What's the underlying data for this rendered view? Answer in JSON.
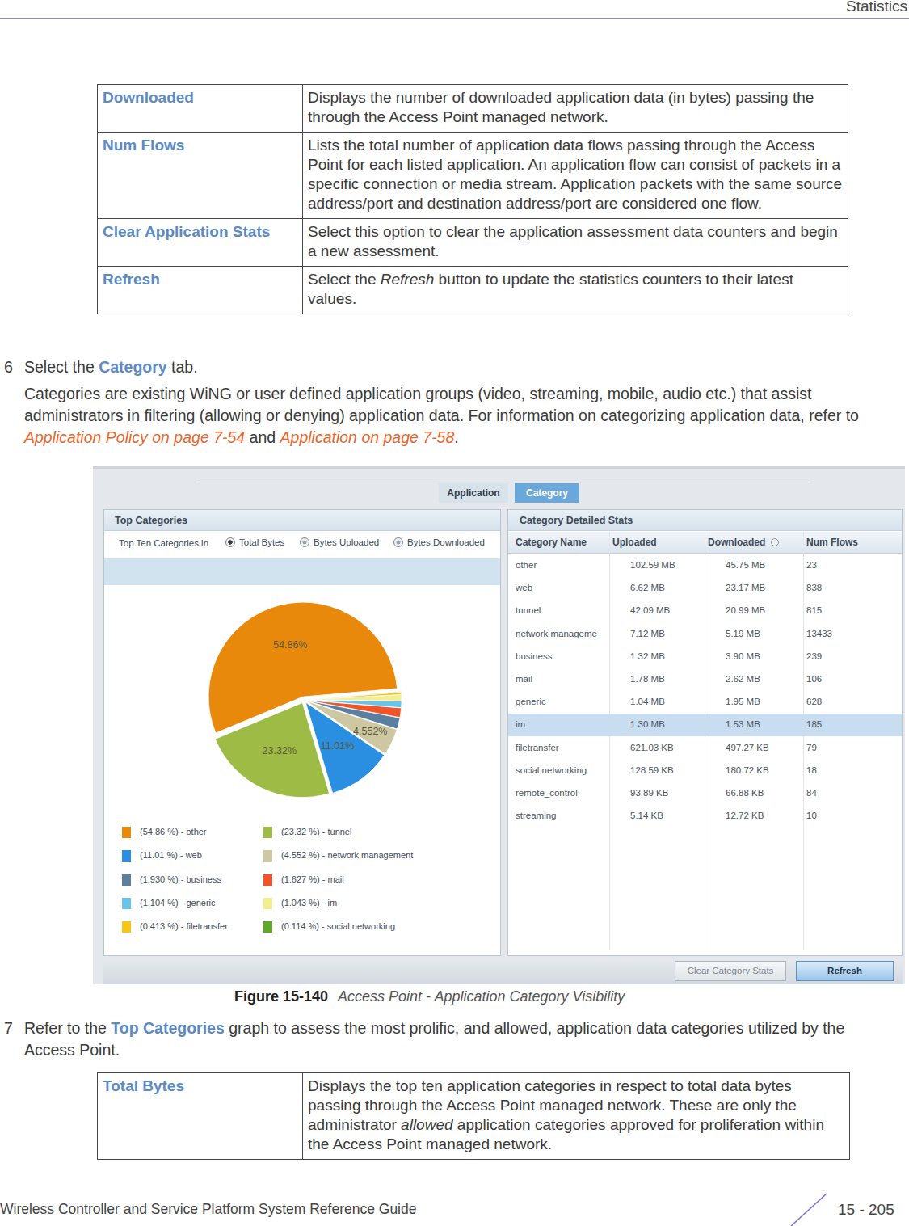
{
  "header": {
    "title": "Statistics"
  },
  "top_table": {
    "rows": [
      {
        "term": "Downloaded",
        "description": [
          {
            "text": "Displays the number of downloaded application data (in bytes) passing the through the Access Point managed network."
          }
        ]
      },
      {
        "term": "Num Flows",
        "description": [
          {
            "text": "Lists the total number of application data flows passing through the Access Point for each listed application. An application flow can consist of packets in a specific connection or media stream. Application packets with the same source address/port and destination address/port are considered one flow."
          }
        ]
      },
      {
        "term": "Clear Application Stats",
        "description": [
          {
            "text": "Select this option to clear the application assessment data counters and begin a new assessment."
          }
        ]
      },
      {
        "term": "Refresh",
        "description": [
          {
            "text": "Select the "
          },
          {
            "text": "Refresh",
            "style": "italic"
          },
          {
            "text": " button to update the statistics counters to their latest values."
          }
        ]
      }
    ]
  },
  "steps": [
    {
      "number": "6",
      "runs": [
        {
          "text": "Select the "
        },
        {
          "text": "Category",
          "style": "bold"
        },
        {
          "text": " tab."
        }
      ],
      "body": [
        {
          "text": "Categories are existing WiNG or user defined application groups (video, streaming, mobile, audio etc.) that assist administrators in filtering (allowing or denying) application data. For information on categorizing application data, refer to "
        },
        {
          "text": "Application Policy on page 7-54",
          "style": "link"
        },
        {
          "text": " and "
        },
        {
          "text": "Application on page 7-58",
          "style": "link"
        },
        {
          "text": "."
        }
      ]
    },
    {
      "number": "7",
      "runs": [
        {
          "text": "Refer to the "
        },
        {
          "text": "Top Categories",
          "style": "bold"
        },
        {
          "text": " graph to assess the most prolific, and allowed, application data categories utilized by the Access Point."
        }
      ]
    }
  ],
  "screenshot": {
    "tabs": [
      {
        "label": "Application"
      },
      {
        "label": "Category",
        "active": true
      }
    ],
    "left_panel": {
      "title": "Top Categories",
      "radio_prompt": "Top Ten Categories in",
      "radio_options": [
        {
          "label": "Total Bytes",
          "checked": true
        },
        {
          "label": "Bytes Uploaded"
        },
        {
          "label": "Bytes Downloaded"
        }
      ]
    },
    "right_panel": {
      "title": "Category Detailed Stats",
      "columns": [
        {
          "label": "Category Name"
        },
        {
          "label": "Uploaded"
        },
        {
          "label": "Downloaded",
          "sorted": true
        },
        {
          "label": "Num Flows"
        }
      ],
      "rows": [
        {
          "cells": [
            "other",
            "102.59 MB",
            "45.75 MB",
            "23"
          ]
        },
        {
          "cells": [
            "web",
            "6.62 MB",
            "23.17 MB",
            "838"
          ]
        },
        {
          "cells": [
            "tunnel",
            "42.09 MB",
            "20.99 MB",
            "815"
          ]
        },
        {
          "cells": [
            "network manageme",
            "7.12 MB",
            "5.19 MB",
            "13433"
          ]
        },
        {
          "cells": [
            "business",
            "1.32 MB",
            "3.90 MB",
            "239"
          ]
        },
        {
          "cells": [
            "mail",
            "1.78 MB",
            "2.62 MB",
            "106"
          ]
        },
        {
          "cells": [
            "generic",
            "1.04 MB",
            "1.95 MB",
            "628"
          ]
        },
        {
          "cells": [
            "im",
            "1.30 MB",
            "1.53 MB",
            "185"
          ],
          "selected": true
        },
        {
          "cells": [
            "filetransfer",
            "621.03 KB",
            "497.27 KB",
            "79"
          ]
        },
        {
          "cells": [
            "social networking",
            "128.59 KB",
            "180.72 KB",
            "18"
          ]
        },
        {
          "cells": [
            "remote_control",
            "93.89 KB",
            "66.88 KB",
            "84"
          ]
        },
        {
          "cells": [
            "streaming",
            "5.14 KB",
            "12.72 KB",
            "10"
          ]
        }
      ]
    },
    "buttons": [
      {
        "label": "Clear Category Stats"
      },
      {
        "label": "Refresh",
        "primary": true
      }
    ]
  },
  "chart_data": {
    "type": "pie",
    "categories": [
      "(54.86 %) - other",
      "(23.32 %) - tunnel",
      "(11.01 %) - web",
      "(4.552 %) - network management",
      "(1.930 %) - business",
      "(1.627 %) - mail",
      "(1.104 %) - generic",
      "(1.043 %) - im",
      "(0.413 %) - filetransfer",
      "(0.114 %) - social networking"
    ],
    "values": [
      54.86,
      23.32,
      11.01,
      4.552,
      1.93,
      1.627,
      1.104,
      1.043,
      0.413,
      0.114
    ],
    "value_labels": [
      "54.86%",
      "23.32%",
      "11.01%",
      "4.552%",
      null,
      null,
      null,
      null,
      null,
      null
    ],
    "colors": [
      "#e8890c",
      "#9dbb45",
      "#2a8fe0",
      "#cdc8a2",
      "#5b7f9f",
      "#f0552a",
      "#6cc3e8",
      "#f3ef8e",
      "#f5c518",
      "#5fa82a"
    ],
    "data_labels": true,
    "legend": "bottom"
  },
  "figure": {
    "number": "Figure 15-140",
    "title": "Access Point - Application Category Visibility"
  },
  "bottom_table": {
    "rows": [
      {
        "term": "Total Bytes",
        "description": [
          {
            "text": "Displays the top ten application categories in respect to total data bytes passing through the Access Point managed network. These are only the administrator "
          },
          {
            "text": "allowed",
            "style": "italic"
          },
          {
            "text": " application categories approved for proliferation within the Access Point managed network."
          }
        ]
      }
    ]
  },
  "footer": {
    "title": "Wireless Controller and Service Platform System Reference Guide",
    "page": "15 - 205"
  }
}
